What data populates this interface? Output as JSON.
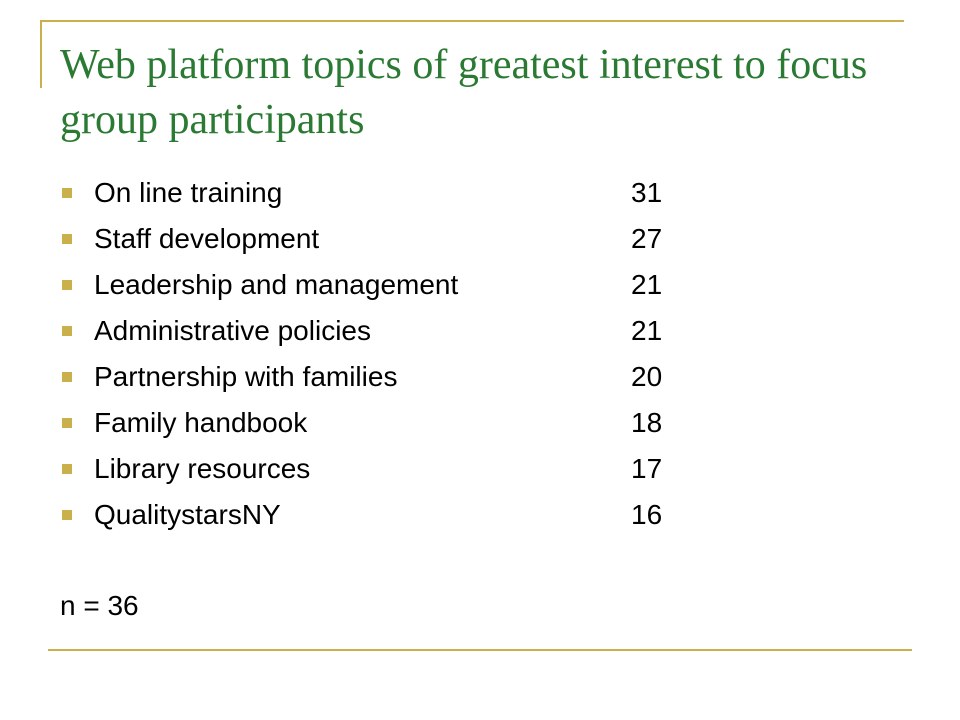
{
  "slide": {
    "title": "Web platform topics of greatest interest to focus group participants",
    "items": [
      {
        "label": "On line training",
        "count": "31"
      },
      {
        "label": "Staff development",
        "count": "27"
      },
      {
        "label": "Leadership and management",
        "count": "21"
      },
      {
        "label": "Administrative policies",
        "count": "21"
      },
      {
        "label": "Partnership with families",
        "count": "20"
      },
      {
        "label": "Family handbook",
        "count": "18"
      },
      {
        "label": "Library resources",
        "count": "17"
      },
      {
        "label": "QualitystarsNY",
        "count": "16"
      }
    ],
    "note": "n = 36"
  },
  "colors": {
    "title": "#2a7a33",
    "accent": "#c9b04a",
    "text": "#000000"
  }
}
